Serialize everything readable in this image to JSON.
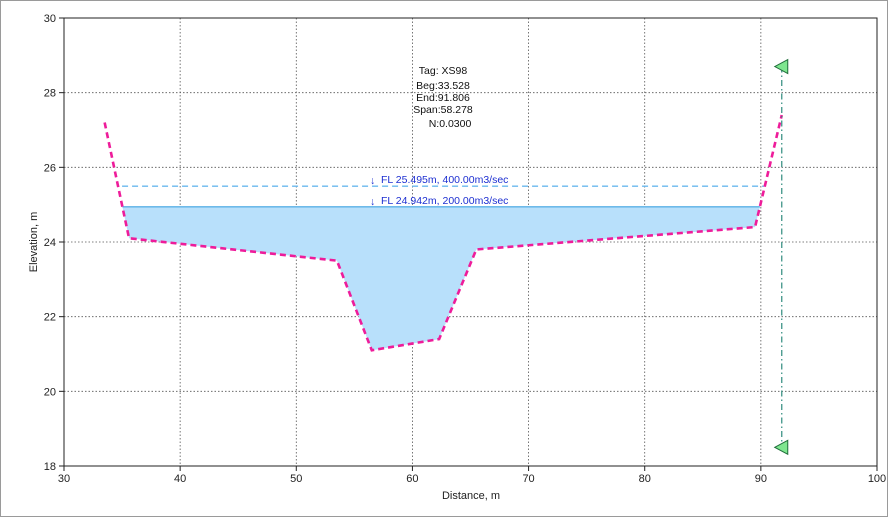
{
  "chart_data": {
    "type": "area",
    "xlabel": "Distance, m",
    "ylabel": "Elevation, m",
    "xlim": [
      30,
      100
    ],
    "ylim": [
      18,
      30
    ],
    "x_ticks": [
      30,
      40,
      50,
      60,
      70,
      80,
      90,
      100
    ],
    "y_ticks": [
      18,
      20,
      22,
      24,
      26,
      28,
      30
    ],
    "grid": true,
    "info": [
      "Tag: XS98",
      "Beg:33.528",
      "End:91.806",
      "Span:58.278",
      "N:0.0300"
    ],
    "profile": {
      "x": [
        33.5,
        35.6,
        53.5,
        56.5,
        62.3,
        65.5,
        89.5,
        91.8
      ],
      "y": [
        27.2,
        24.1,
        23.5,
        21.1,
        21.4,
        23.8,
        24.4,
        27.4
      ]
    },
    "water_levels": [
      {
        "label": "FL 25.495m, 400.00m3/sec",
        "elevation": 25.495,
        "x_range": [
          35.0,
          90.3
        ]
      },
      {
        "label": "FL 24.942m, 200.00m3/sec",
        "elevation": 24.942,
        "x_range": [
          35.0,
          90.3
        ]
      }
    ],
    "bank_marker": {
      "x": 91.8,
      "y_top": 28.7,
      "y_bottom": 18.5
    },
    "colors": {
      "profile": "#ee1c9a",
      "water_fill": "#b8e0fb",
      "water_line": "#5ab0e6",
      "water_line_dashed": "#69b8ee",
      "marker_line": "#2e8b7e",
      "marker_fill": "#7ee68f",
      "grid": "#555555"
    }
  }
}
